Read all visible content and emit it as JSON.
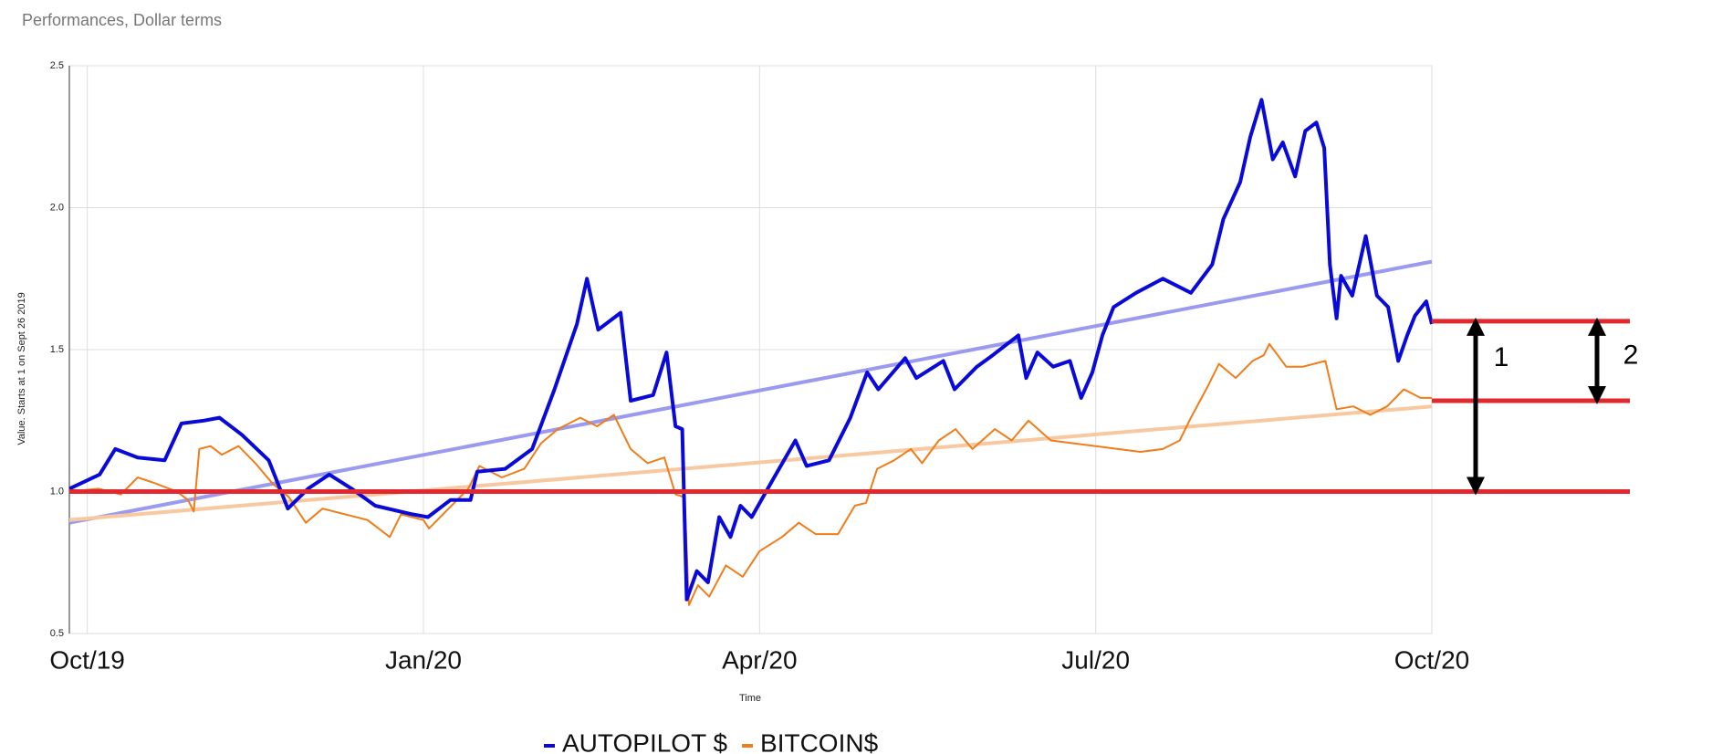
{
  "chart_data": {
    "type": "line",
    "title": "Performances, Dollar terms",
    "y_label": "Value. Starts at 1 on Sept 26 2019",
    "x_label": "Time",
    "xlim": [
      -0.16,
      12
    ],
    "xticks": [
      {
        "value": 0,
        "label": "Oct/19"
      },
      {
        "value": 3,
        "label": "Jan/20"
      },
      {
        "value": 6,
        "label": "Apr/20"
      },
      {
        "value": 9,
        "label": "Jul/20"
      },
      {
        "value": 12,
        "label": "Oct/20"
      }
    ],
    "ylim": [
      0.5,
      2.5
    ],
    "yticks": [
      0.5,
      {
        "value": 1,
        "label": "1.0"
      },
      1.5,
      {
        "value": 2,
        "label": "2.0"
      },
      2.5
    ],
    "grid": true,
    "series": [
      {
        "name": "AUTOPILOT $",
        "color": "#0a0ad8",
        "x": [
          -0.16,
          0.11,
          0.25,
          0.45,
          0.69,
          0.84,
          1.04,
          1.18,
          1.38,
          1.62,
          1.79,
          1.97,
          2.16,
          2.36,
          2.57,
          2.9,
          3.04,
          3.24,
          3.42,
          3.48,
          3.73,
          3.97,
          4.17,
          4.37,
          4.46,
          4.56,
          4.76,
          4.85,
          5.05,
          5.17,
          5.25,
          5.31,
          5.35,
          5.44,
          5.54,
          5.64,
          5.74,
          5.83,
          5.93,
          6.13,
          6.32,
          6.42,
          6.62,
          6.81,
          6.96,
          7.06,
          7.3,
          7.4,
          7.64,
          7.74,
          7.94,
          8.08,
          8.31,
          8.38,
          8.48,
          8.62,
          8.77,
          8.87,
          8.97,
          9.06,
          9.16,
          9.36,
          9.6,
          9.85,
          10.04,
          10.14,
          10.29,
          10.38,
          10.48,
          10.58,
          10.67,
          10.78,
          10.87,
          10.97,
          11.04,
          11.09,
          11.15,
          11.19,
          11.29,
          11.41,
          11.51,
          11.61,
          11.7,
          11.78,
          11.85,
          11.95,
          12
        ],
        "values": [
          1.01,
          1.06,
          1.15,
          1.12,
          1.11,
          1.24,
          1.25,
          1.26,
          1.2,
          1.11,
          0.94,
          1.01,
          1.06,
          1.01,
          0.95,
          0.92,
          0.91,
          0.97,
          0.97,
          1.07,
          1.08,
          1.15,
          1.36,
          1.59,
          1.75,
          1.57,
          1.63,
          1.32,
          1.34,
          1.49,
          1.23,
          1.22,
          0.62,
          0.72,
          0.68,
          0.91,
          0.84,
          0.95,
          0.91,
          1.05,
          1.18,
          1.09,
          1.11,
          1.26,
          1.42,
          1.36,
          1.47,
          1.4,
          1.46,
          1.36,
          1.44,
          1.48,
          1.55,
          1.4,
          1.49,
          1.44,
          1.46,
          1.33,
          1.42,
          1.55,
          1.65,
          1.7,
          1.75,
          1.7,
          1.8,
          1.96,
          2.09,
          2.25,
          2.38,
          2.17,
          2.23,
          2.11,
          2.27,
          2.3,
          2.21,
          1.8,
          1.61,
          1.76,
          1.69,
          1.9,
          1.69,
          1.65,
          1.46,
          1.55,
          1.62,
          1.67,
          1.59
        ]
      },
      {
        "name": "BITCOIN$",
        "color": "#f07d1a",
        "x": [
          -0.16,
          0.1,
          0.3,
          0.45,
          0.6,
          0.8,
          0.9,
          0.95,
          1,
          1.1,
          1.2,
          1.35,
          1.5,
          1.65,
          1.8,
          1.95,
          2.1,
          2.3,
          2.5,
          2.7,
          2.8,
          3,
          3.05,
          3.2,
          3.4,
          3.5,
          3.7,
          3.9,
          4.05,
          4.2,
          4.4,
          4.55,
          4.7,
          4.85,
          5,
          5.15,
          5.25,
          5.33,
          5.37,
          5.45,
          5.55,
          5.7,
          5.85,
          6,
          6.2,
          6.35,
          6.5,
          6.7,
          6.85,
          6.95,
          7.05,
          7.2,
          7.35,
          7.45,
          7.6,
          7.75,
          7.9,
          8.1,
          8.25,
          8.4,
          8.6,
          8.8,
          9,
          9.2,
          9.4,
          9.6,
          9.75,
          9.85,
          10,
          10.1,
          10.25,
          10.4,
          10.5,
          10.55,
          10.7,
          10.85,
          11.05,
          11.15,
          11.3,
          11.45,
          11.6,
          11.75,
          11.9,
          12
        ],
        "values": [
          1,
          1.01,
          0.99,
          1.05,
          1.03,
          1,
          0.97,
          0.93,
          1.15,
          1.16,
          1.13,
          1.16,
          1.1,
          1.03,
          0.98,
          0.89,
          0.94,
          0.92,
          0.9,
          0.84,
          0.92,
          0.9,
          0.87,
          0.93,
          1.01,
          1.09,
          1.05,
          1.08,
          1.17,
          1.22,
          1.26,
          1.23,
          1.27,
          1.15,
          1.1,
          1.12,
          0.99,
          0.98,
          0.6,
          0.67,
          0.63,
          0.74,
          0.7,
          0.79,
          0.84,
          0.89,
          0.85,
          0.85,
          0.95,
          0.96,
          1.08,
          1.11,
          1.15,
          1.1,
          1.18,
          1.22,
          1.15,
          1.22,
          1.18,
          1.25,
          1.18,
          1.17,
          1.16,
          1.15,
          1.14,
          1.15,
          1.18,
          1.26,
          1.37,
          1.45,
          1.4,
          1.46,
          1.48,
          1.52,
          1.44,
          1.44,
          1.46,
          1.29,
          1.3,
          1.27,
          1.3,
          1.36,
          1.33,
          1.33
        ]
      }
    ],
    "trendlines": [
      {
        "color": "#9a9af0",
        "x": [
          -0.16,
          12
        ],
        "values": [
          0.89,
          1.81
        ]
      },
      {
        "color": "#f8c9a0",
        "x": [
          -0.16,
          12
        ],
        "values": [
          0.9,
          1.3
        ]
      }
    ],
    "reference_lines": [
      {
        "value": 1,
        "color": "#e0282e",
        "full_width": true
      },
      {
        "value": 1.6,
        "color": "#e0282e",
        "full_width": false
      },
      {
        "value": 1.32,
        "color": "#e0282e",
        "full_width": false
      }
    ],
    "annotations": [
      {
        "text": "1",
        "from": 1.6,
        "to": 1
      },
      {
        "text": "2",
        "from": 1.6,
        "to": 1.32
      }
    ],
    "legend_position": "bottom"
  }
}
